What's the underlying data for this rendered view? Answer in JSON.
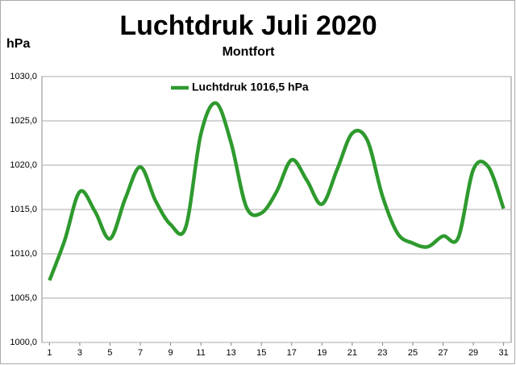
{
  "chart_data": {
    "type": "line",
    "title": "Luchtdruk Juli 2020",
    "subtitle": "Montfort",
    "y_label": "hPa",
    "x": [
      1,
      2,
      3,
      4,
      5,
      6,
      7,
      8,
      9,
      10,
      11,
      12,
      13,
      14,
      15,
      16,
      17,
      18,
      19,
      20,
      21,
      22,
      23,
      24,
      25,
      26,
      27,
      28,
      29,
      30,
      31
    ],
    "xlim": [
      0.5,
      31.5
    ],
    "xticks": [
      1,
      3,
      5,
      7,
      9,
      11,
      13,
      15,
      17,
      19,
      21,
      23,
      25,
      27,
      29,
      31
    ],
    "ylim": [
      1000,
      1030
    ],
    "yticks": [
      {
        "value": 1000,
        "label": "1000,0"
      },
      {
        "value": 1005,
        "label": "1005,0"
      },
      {
        "value": 1010,
        "label": "1010,0"
      },
      {
        "value": 1015,
        "label": "1015,0"
      },
      {
        "value": 1020,
        "label": "1020,0"
      },
      {
        "value": 1025,
        "label": "1025,0"
      },
      {
        "value": 1030,
        "label": "1030,0"
      }
    ],
    "grid": true,
    "smooth": true,
    "series": [
      {
        "name": "Luchtdruk 1016,5 hPa",
        "color": "#2e9a2e",
        "values": [
          1007.0,
          1011.5,
          1017.0,
          1014.8,
          1011.7,
          1016.2,
          1019.8,
          1016.0,
          1013.3,
          1013.0,
          1023.5,
          1027.0,
          1022.5,
          1015.3,
          1014.6,
          1017.0,
          1020.6,
          1018.3,
          1015.6,
          1019.5,
          1023.6,
          1022.8,
          1016.5,
          1012.3,
          1011.2,
          1010.8,
          1012.0,
          1011.8,
          1019.5,
          1019.8,
          1015.1
        ]
      }
    ]
  }
}
